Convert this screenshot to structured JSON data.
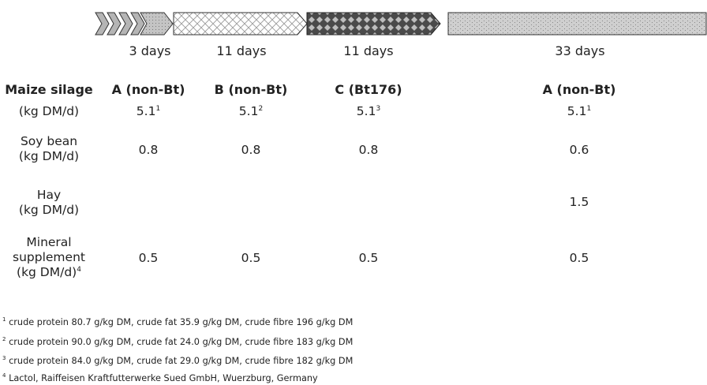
{
  "periods": {
    "p1": "3 days",
    "p2": "11 days",
    "p3": "11 days",
    "p4": "33 days"
  },
  "header": {
    "row_label": "Maize silage",
    "col1": "A (non-Bt)",
    "col2": "B (non-Bt)",
    "col3": "C (Bt176)",
    "col4": "A (non-Bt)"
  },
  "rows": {
    "maize": {
      "unit": "(kg DM/d)",
      "v1": "5.1",
      "s1": "1",
      "v2": "5.1",
      "s2": "2",
      "v3": "5.1",
      "s3": "3",
      "v4": "5.1",
      "s4": "1"
    },
    "soy": {
      "label1": "Soy bean",
      "label2": "(kg DM/d)",
      "v1": "0.8",
      "v2": "0.8",
      "v3": "0.8",
      "v4": "0.6"
    },
    "hay": {
      "label1": "Hay",
      "label2": "(kg DM/d)",
      "v4": "1.5"
    },
    "mineral": {
      "label1": "Mineral",
      "label2": "supplement",
      "label3": "(kg DM/d)",
      "label_sup": "4",
      "v1": "0.5",
      "v2": "0.5",
      "v3": "0.5",
      "v4": "0.5"
    }
  },
  "footnotes": {
    "f1": {
      "mark": "1",
      "text": "crude protein 80.7 g/kg DM, crude fat 35.9 g/kg DM, crude fibre 196 g/kg DM"
    },
    "f2": {
      "mark": "2",
      "text": "crude protein 90.0 g/kg DM, crude fat 24.0 g/kg DM, crude fibre 183 g/kg DM"
    },
    "f3": {
      "mark": "3",
      "text": "crude protein 84.0 g/kg DM, crude fat 29.0 g/kg DM, crude fibre 182 g/kg DM"
    },
    "f4": {
      "mark": "4",
      "text": "Lactol, Raiffeisen Kraftfutterwerke Sued GmbH, Wuerzburg, Germany"
    }
  }
}
